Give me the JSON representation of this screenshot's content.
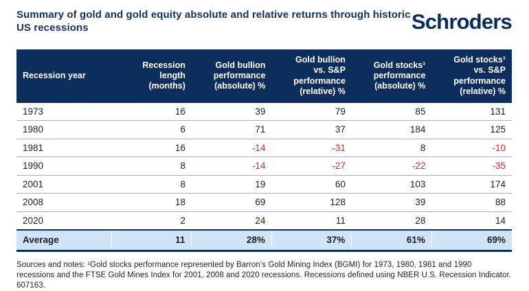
{
  "logo_text": "Schroders",
  "footer": {
    "sources": "Sources and notes: ¹Gold stocks performance represented by Barron’s Gold Mining Index (BGMI) for 1973, 1980, 1981 and 1990 recessions and the FTSE Gold Mines Index for 2001, 2008 and 2020 recessions. Recessions defined using NBER U.S. Recession Indicator. 607163."
  },
  "colors": {
    "header_bg": "#0d2d5d",
    "navy_text": "#12305e",
    "average_bg": "#cfe4f7",
    "negative_value": "#e3232b",
    "row_separator": "#a3afbd"
  },
  "chart_data": {
    "type": "table",
    "title": "Summary of gold and gold equity absolute and relative returns through historic US recessions",
    "columns": [
      "Recession year",
      "Recession\nlength\n(months)",
      "Gold bullion\nperformance\n(absolute) %",
      "Gold bullion\nvs. S&P\nperformance\n(relative) %",
      "Gold stocks¹\nperformance\n(absolute) %",
      "Gold stocks¹\nvs. S&P\nperformance\n(relative) %"
    ],
    "rows": [
      [
        "1973",
        "16",
        "39",
        "79",
        "85",
        "131"
      ],
      [
        "1980",
        "6",
        "71",
        "37",
        "184",
        "125"
      ],
      [
        "1981",
        "16",
        "-14",
        "-31",
        "8",
        "-10"
      ],
      [
        "1990",
        "8",
        "-14",
        "-27",
        "-22",
        "-35"
      ],
      [
        "2001",
        "8",
        "19",
        "60",
        "103",
        "174"
      ],
      [
        "2008",
        "18",
        "69",
        "128",
        "39",
        "88"
      ],
      [
        "2020",
        "2",
        "24",
        "11",
        "28",
        "14"
      ]
    ],
    "average_row": [
      "Average",
      "11",
      "28%",
      "37%",
      "61%",
      "69%"
    ]
  }
}
